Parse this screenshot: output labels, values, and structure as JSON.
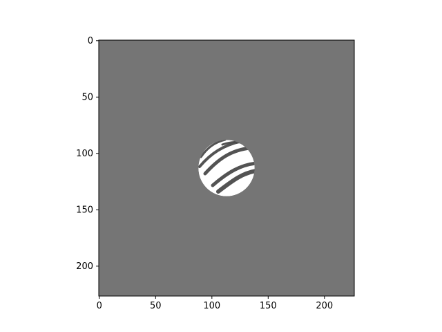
{
  "image": {
    "description_icon": "masked-circle-stripe-image-icon",
    "background_color": "#757575",
    "disk_color": "#ffffff",
    "stripe_color": "#4a4a4a",
    "width_units": 227,
    "height_units": 227,
    "disk_center": [
      113,
      113
    ],
    "disk_radius": 25
  },
  "axes": {
    "x_range": [
      -0.5,
      226.5
    ],
    "y_range": [
      226.5,
      -0.5
    ],
    "x_ticks": [
      {
        "value": 0,
        "label": "0"
      },
      {
        "value": 50,
        "label": "50"
      },
      {
        "value": 100,
        "label": "100"
      },
      {
        "value": 150,
        "label": "150"
      },
      {
        "value": 200,
        "label": "200"
      }
    ],
    "y_ticks": [
      {
        "value": 0,
        "label": "0"
      },
      {
        "value": 50,
        "label": "50"
      },
      {
        "value": 100,
        "label": "100"
      },
      {
        "value": 150,
        "label": "150"
      },
      {
        "value": 200,
        "label": "200"
      }
    ]
  }
}
